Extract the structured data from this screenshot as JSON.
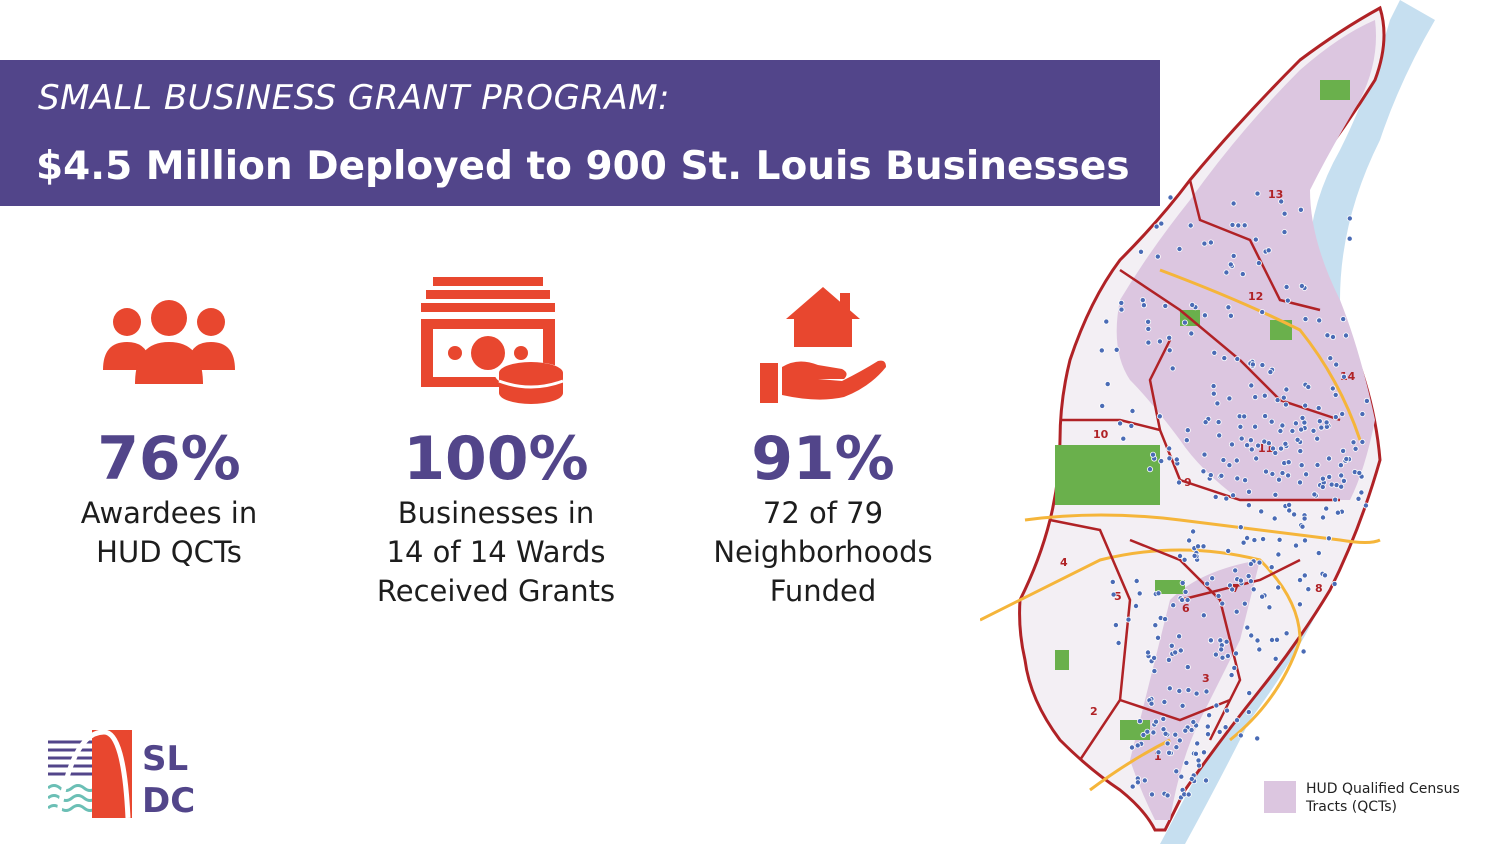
{
  "banner": {
    "subtitle": "SMALL BUSINESS GRANT PROGRAM:",
    "title": "$4.5 Million Deployed to 900 St. Louis Businesses"
  },
  "colors": {
    "banner": "#52458a",
    "accent": "#e8472f",
    "stat_number": "#52458a",
    "qct_fill": "#dcc6e0",
    "ward_border": "#b02226",
    "river": "#c6dff0",
    "park": "#6ab04c",
    "highway": "#f5b53a",
    "pin": "#4a6bb5"
  },
  "stats": [
    {
      "icon": "people-group-icon",
      "value": "76%",
      "lines": [
        "Awardees in",
        "HUD QCTs"
      ]
    },
    {
      "icon": "money-cash-stack-icon",
      "value": "100%",
      "lines": [
        "Businesses in",
        "14 of 14 Wards",
        "Received Grants"
      ]
    },
    {
      "icon": "house-in-hand-icon",
      "value": "91%",
      "lines": [
        "72 of 79",
        "Neighborhoods",
        "Funded"
      ]
    }
  ],
  "logo": {
    "line1": "SL",
    "line2": "DC"
  },
  "map": {
    "ward_labels": [
      "1",
      "2",
      "3",
      "4",
      "5",
      "6",
      "7",
      "8",
      "9",
      "10",
      "11",
      "12",
      "13",
      "14"
    ]
  },
  "legend": {
    "label": "HUD Qualified Census Tracts (QCTs)"
  }
}
